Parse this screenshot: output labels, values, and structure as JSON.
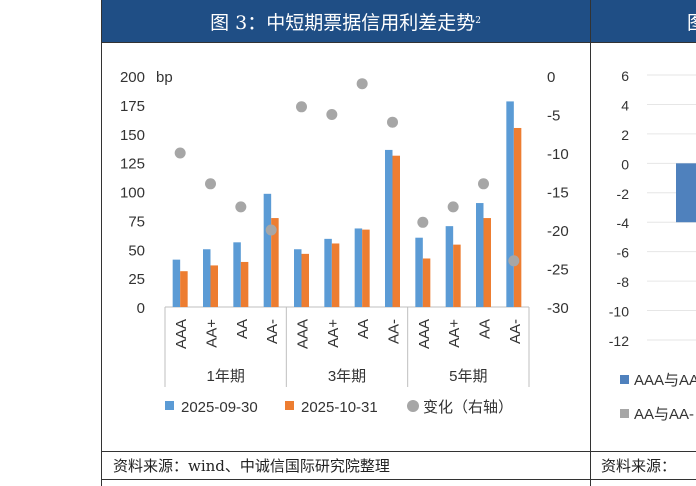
{
  "left": {
    "title": "图 3：中短期票据信用利差走势",
    "title_sup": "2",
    "source": "资料来源：wind、中诚信国际研究院整理"
  },
  "right": {
    "title_fragment": "图",
    "source": "资料来源：",
    "legend": [
      "AAA与AA",
      "AA与AA-"
    ],
    "colors": [
      "#4f81bd",
      "#a6a6a6"
    ]
  },
  "chart_data": [
    {
      "type": "bar",
      "y_unit_label": "bp",
      "categories": [
        "AAA",
        "AA+",
        "AA",
        "AA-",
        "AAA",
        "AA+",
        "AA",
        "AA-",
        "AAA",
        "AA+",
        "AA",
        "AA-"
      ],
      "groups": [
        "1年期",
        "3年期",
        "5年期"
      ],
      "series": [
        {
          "name": "2025-09-30",
          "color": "#5b9bd5",
          "values": [
            41,
            50,
            56,
            98,
            50,
            59,
            68,
            136,
            60,
            70,
            90,
            178
          ]
        },
        {
          "name": "2025-10-31",
          "color": "#ed7d31",
          "values": [
            31,
            36,
            39,
            77,
            46,
            55,
            67,
            131,
            42,
            54,
            77,
            155
          ]
        },
        {
          "name": "变化（右轴）",
          "color": "#a6a6a6",
          "type": "scatter",
          "axis": "right",
          "values": [
            -10,
            -14,
            -17,
            -20,
            -4,
            -5,
            -1,
            -6,
            -19,
            -17,
            -14,
            -24
          ]
        }
      ],
      "ylim": [
        0,
        200
      ],
      "yticks": [
        "0",
        "25",
        "50",
        "75",
        "100",
        "125",
        "150",
        "175",
        "200"
      ],
      "y2lim": [
        -30,
        0
      ],
      "y2ticks": [
        "-30",
        "-25",
        "-20",
        "-15",
        "-10",
        "-5",
        "0"
      ],
      "legend_position": "bottom"
    },
    {
      "type": "bar",
      "yticks": [
        "-12",
        "-10",
        "-8",
        "-6",
        "-4",
        "-2",
        "0",
        "2",
        "4",
        "6"
      ],
      "ylim": [
        -12,
        6
      ],
      "visible_bars": [
        {
          "series": "AAA与AA",
          "value": -4
        }
      ]
    }
  ]
}
